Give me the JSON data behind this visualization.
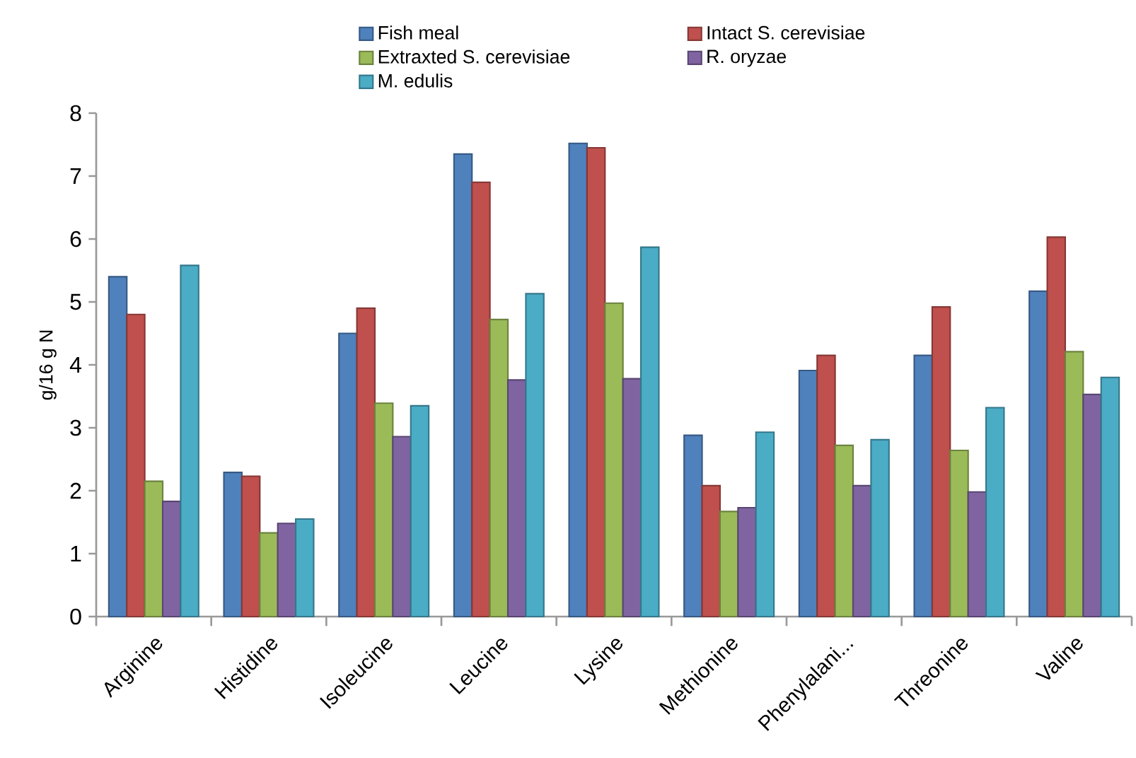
{
  "chart_data": {
    "type": "bar",
    "ylabel": "g/16 g N",
    "categories": [
      "Arginine",
      "Histidine",
      "Isoleucine",
      "Leucine",
      "Lysine",
      "Methionine",
      "Phenylalani...",
      "Threonine",
      "Valine"
    ],
    "series": [
      {
        "name": "Fish meal",
        "color": "#4f81bd",
        "values": [
          5.4,
          2.29,
          4.5,
          7.35,
          7.52,
          2.88,
          3.91,
          4.15,
          5.17
        ]
      },
      {
        "name": "Intact S. cerevisiae",
        "color": "#c0504d",
        "values": [
          4.8,
          2.23,
          4.9,
          6.9,
          7.45,
          2.08,
          4.15,
          4.92,
          6.03
        ]
      },
      {
        "name": "Extraxted S. cerevisiae",
        "color": "#9bbb59",
        "values": [
          2.15,
          1.33,
          3.39,
          4.72,
          4.98,
          1.67,
          2.72,
          2.64,
          4.21
        ]
      },
      {
        "name": "R. oryzae",
        "color": "#8064a2",
        "values": [
          1.83,
          1.48,
          2.86,
          3.76,
          3.78,
          1.73,
          2.08,
          1.98,
          3.53
        ]
      },
      {
        "name": "M. edulis",
        "color": "#4bacc6",
        "values": [
          5.58,
          1.55,
          3.35,
          5.13,
          5.87,
          2.93,
          2.81,
          3.32,
          3.8
        ]
      }
    ],
    "ylim": [
      0,
      8
    ],
    "yticks": [
      0,
      1,
      2,
      3,
      4,
      5,
      6,
      7,
      8
    ],
    "grid": false,
    "legend": "top"
  }
}
